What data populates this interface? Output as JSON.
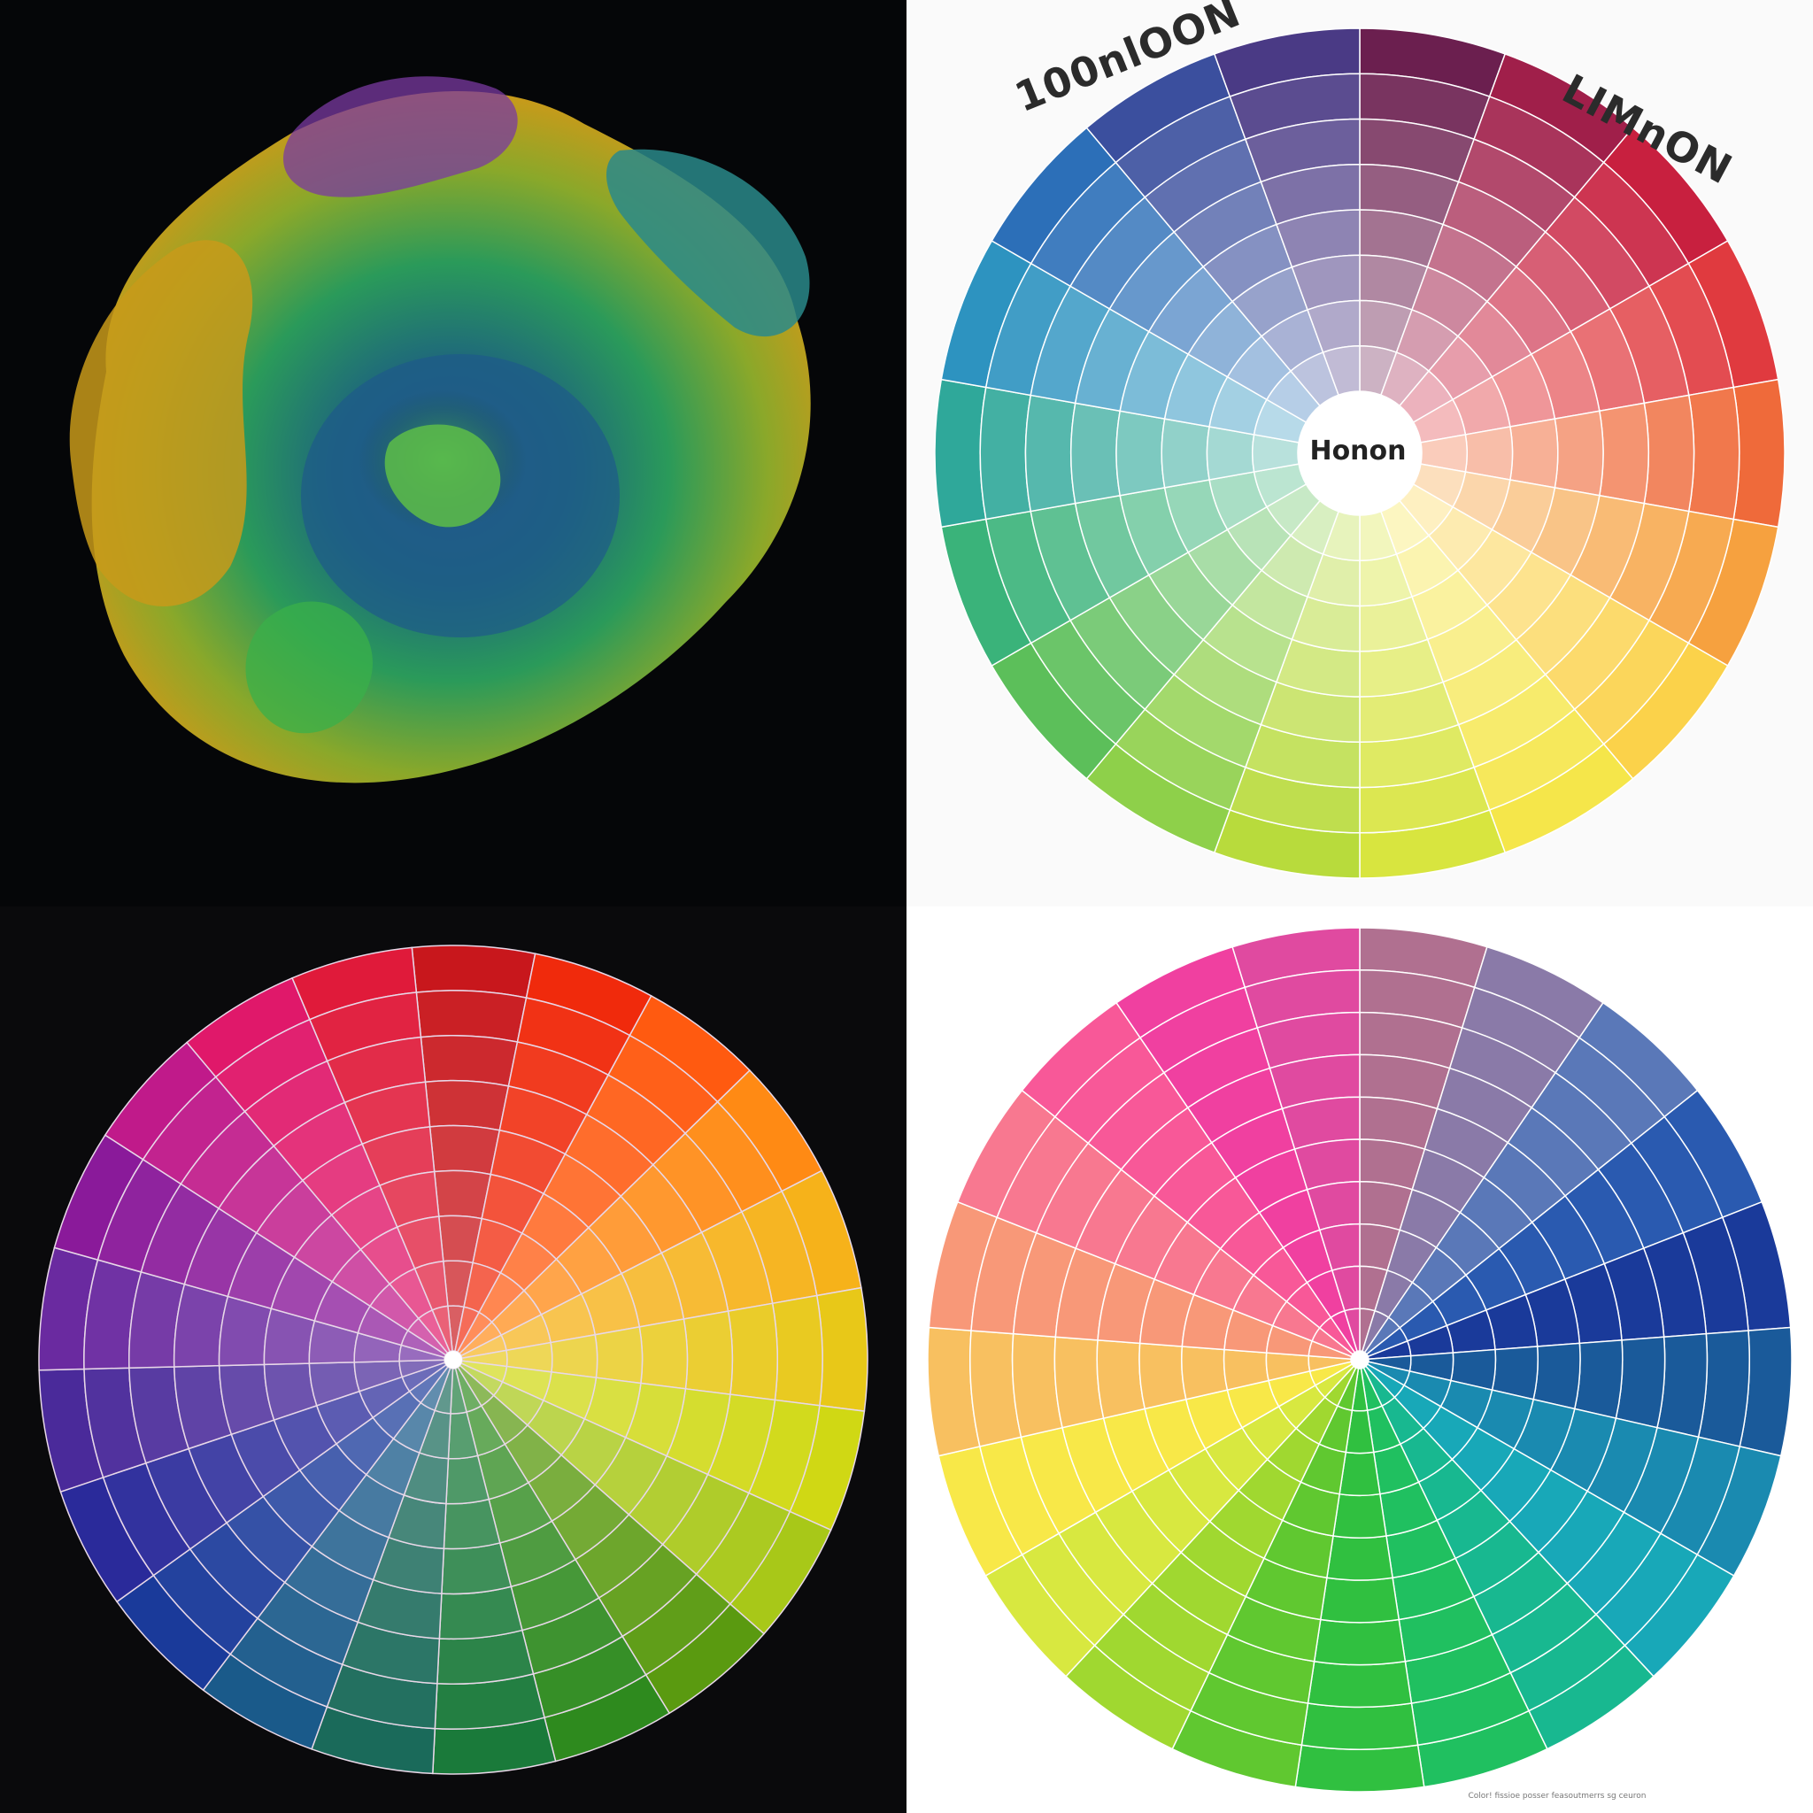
{
  "panels": {
    "top_left": {
      "kind": "abstract-coral-render",
      "background": "#050608"
    },
    "top_right": {
      "kind": "color-wheel",
      "title_left": "100nlOON",
      "title_right": "LIMnON",
      "center_label": "Honon",
      "background": "#fafafa"
    },
    "bottom_left": {
      "kind": "color-wheel",
      "background": "#0a0a0c"
    },
    "bottom_right": {
      "kind": "color-wheel",
      "footnote": "Color! fissioe posser feasoutmerrs sg ceuron",
      "background": "#ffffff"
    }
  },
  "colors": {
    "tr_ring": [
      "#6b1f4f",
      "#a01f4a",
      "#c8203f",
      "#e03a3f",
      "#ef6a3a",
      "#f6a13f",
      "#fbd24a",
      "#f5e64a",
      "#d8e53f",
      "#b8db3c",
      "#8ed04a",
      "#5cbf5a",
      "#3ab37a",
      "#2fa89a",
      "#2d93c0",
      "#2c6fb8",
      "#3b4f9e",
      "#4a3a85"
    ],
    "bl_ring": [
      "#c8171c",
      "#f02a0c",
      "#ff5a10",
      "#ff8a14",
      "#f6b21a",
      "#e8c818",
      "#d0d814",
      "#a8c818",
      "#5a9a10",
      "#2e8a1e",
      "#1a7a3a",
      "#1a6a5a",
      "#1a5a8a",
      "#1a3a9a",
      "#2a2a9a",
      "#4a2a9a",
      "#6a2aa0",
      "#8a1a9a",
      "#c01a8a",
      "#e0186a",
      "#e01a3a"
    ],
    "br_ring": [
      "#b07090",
      "#8a7aa8",
      "#5a78b8",
      "#2a5ab0",
      "#1a3a9a",
      "#1a5a9a",
      "#1a8ab0",
      "#18a8b8",
      "#18b890",
      "#20c060",
      "#30c040",
      "#60c830",
      "#a0d830",
      "#d8e840",
      "#f8e848",
      "#f8c060",
      "#f89878",
      "#f87890",
      "#f85898",
      "#f040a0",
      "#e04aa0"
    ],
    "tl_blobs": [
      "#c89a1a",
      "#d6a81e",
      "#8aa82a",
      "#3a9a5a",
      "#2a7a8a",
      "#1e5a8a",
      "#4a3a9a",
      "#7a3aa0",
      "#2fb06a",
      "#4ac860"
    ]
  }
}
